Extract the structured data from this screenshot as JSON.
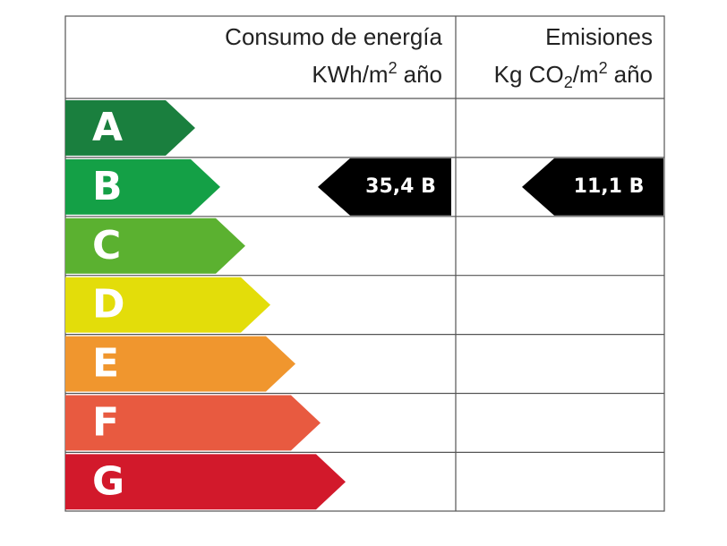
{
  "header": {
    "consumption": {
      "title": "Consumo de energía",
      "unit": [
        "KWh/m",
        "2",
        "año"
      ]
    },
    "emissions": {
      "title": "Emisiones",
      "unit": [
        "Kg CO",
        "2",
        "/m",
        "2",
        "año"
      ]
    }
  },
  "rows": [
    {
      "letter": "A",
      "color": "#1a7f3e"
    },
    {
      "letter": "B",
      "color": "#14a046",
      "consumption": "35,4 B",
      "emissions": "11,1 B"
    },
    {
      "letter": "C",
      "color": "#5bb130"
    },
    {
      "letter": "D",
      "color": "#e3dd0a"
    },
    {
      "letter": "E",
      "color": "#f0962e"
    },
    {
      "letter": "F",
      "color": "#e85a40"
    },
    {
      "letter": "G",
      "color": "#d2192b"
    }
  ]
}
